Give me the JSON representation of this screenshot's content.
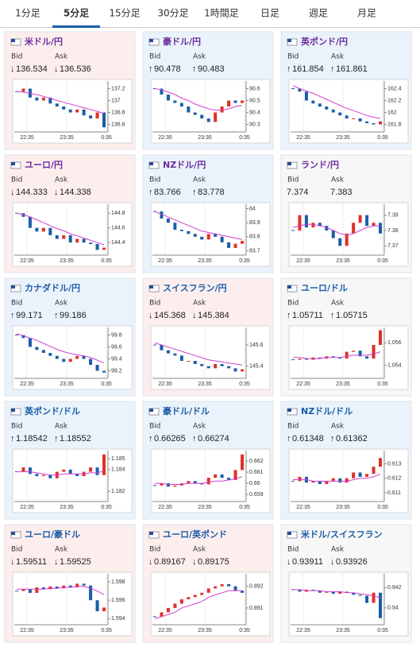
{
  "tabs": [
    "1分足",
    "5分足",
    "15分足",
    "30分足",
    "1時間足",
    "日足",
    "週足",
    "月足"
  ],
  "active_tab": 1,
  "tiles": [
    {
      "name": "米ドル/円",
      "name_color": "#6a2c9c",
      "background": "#fdeeee",
      "bid_label": "Bid",
      "ask_label": "Ask",
      "bid_arrow": "↓",
      "bid": "136.534",
      "ask_arrow": "↓",
      "ask": "136.536",
      "chart": {
        "type": "candlestick",
        "x": [
          "22:35",
          "23:35",
          "0:35"
        ],
        "ylim": [
          136.5,
          137.3
        ],
        "yticks": [
          136.6,
          136.8,
          137,
          137.2
        ],
        "closes": [
          137.15,
          137.2,
          137.05,
          137.0,
          137.05,
          136.95,
          136.9,
          136.85,
          136.8,
          136.85,
          136.75,
          136.7,
          136.8,
          136.55
        ],
        "ma": [
          137.15,
          137.14,
          137.12,
          137.1,
          137.07,
          137.04,
          137.0,
          136.97,
          136.94,
          136.91,
          136.88,
          136.85,
          136.82,
          136.78
        ]
      }
    },
    {
      "name": "豪ドル/円",
      "name_color": "#6a2c9c",
      "background": "#eaf3fb",
      "bid_label": "Bid",
      "ask_label": "Ask",
      "bid_arrow": "↑",
      "bid": "90.478",
      "ask_arrow": "↑",
      "ask": "90.483",
      "chart": {
        "type": "candlestick",
        "x": [
          "22:35",
          "23:35",
          "0:35"
        ],
        "ylim": [
          90.25,
          90.65
        ],
        "yticks": [
          90.3,
          90.4,
          90.5,
          90.6
        ],
        "closes": [
          90.6,
          90.55,
          90.5,
          90.48,
          90.45,
          90.4,
          90.38,
          90.35,
          90.32,
          90.4,
          90.45,
          90.5,
          90.48,
          90.5
        ],
        "ma": [
          90.6,
          90.59,
          90.57,
          90.55,
          90.52,
          90.5,
          90.47,
          90.45,
          90.43,
          90.42,
          90.42,
          90.43,
          90.45,
          90.46
        ]
      }
    },
    {
      "name": "英ポンド/円",
      "name_color": "#6a2c9c",
      "background": "#eaf3fb",
      "bid_label": "Bid",
      "ask_label": "Ask",
      "bid_arrow": "↑",
      "bid": "161.854",
      "ask_arrow": "↑",
      "ask": "161.861",
      "chart": {
        "type": "candlestick",
        "x": [
          "22:35",
          "23:35",
          "0:35"
        ],
        "ylim": [
          161.7,
          162.5
        ],
        "yticks": [
          161.8,
          162,
          162.2,
          162.4
        ],
        "closes": [
          162.4,
          162.35,
          162.2,
          162.15,
          162.1,
          162.05,
          162.0,
          161.95,
          161.9,
          161.9,
          161.85,
          161.82,
          161.8,
          161.85
        ],
        "ma": [
          162.45,
          162.4,
          162.36,
          162.32,
          162.27,
          162.22,
          162.17,
          162.12,
          162.07,
          162.03,
          161.99,
          161.95,
          161.92,
          161.9
        ]
      }
    },
    {
      "name": "ユーロ/円",
      "name_color": "#6a2c9c",
      "background": "#fdeeee",
      "bid_label": "Bid",
      "ask_label": "Ask",
      "bid_arrow": "↓",
      "bid": "144.333",
      "ask_arrow": "↓",
      "ask": "144.338",
      "chart": {
        "type": "candlestick",
        "x": [
          "22:35",
          "23:35",
          "0:35"
        ],
        "ylim": [
          144.25,
          144.9
        ],
        "yticks": [
          144.4,
          144.6,
          144.8
        ],
        "closes": [
          144.8,
          144.75,
          144.6,
          144.55,
          144.6,
          144.5,
          144.45,
          144.5,
          144.4,
          144.45,
          144.4,
          144.38,
          144.3,
          144.33
        ],
        "ma": [
          144.8,
          144.78,
          144.75,
          144.71,
          144.67,
          144.63,
          144.59,
          144.56,
          144.52,
          144.49,
          144.46,
          144.43,
          144.4,
          144.37
        ]
      }
    },
    {
      "name": "NZドル/円",
      "name_color": "#6a2c9c",
      "background": "#eaf3fb",
      "bid_label": "Bid",
      "ask_label": "Ask",
      "bid_arrow": "↑",
      "bid": "83.766",
      "ask_arrow": "↑",
      "ask": "83.778",
      "chart": {
        "type": "candlestick",
        "x": [
          "22:35",
          "23:35",
          "0:35"
        ],
        "ylim": [
          83.68,
          84.02
        ],
        "yticks": [
          83.7,
          83.8,
          83.9,
          84
        ],
        "closes": [
          83.98,
          83.93,
          83.9,
          83.85,
          83.84,
          83.82,
          83.8,
          83.78,
          83.82,
          83.8,
          83.76,
          83.72,
          83.75,
          83.77
        ],
        "ma": [
          83.98,
          83.96,
          83.94,
          83.92,
          83.9,
          83.88,
          83.86,
          83.84,
          83.83,
          83.82,
          83.81,
          83.8,
          83.79,
          83.78
        ]
      }
    },
    {
      "name": "ランド/円",
      "name_color": "#6a2c9c",
      "background": "#f7f7f7",
      "bid_label": "Bid",
      "ask_label": "Ask",
      "bid": "7.374",
      "ask": "7.383",
      "chart": {
        "type": "candlestick",
        "x": [
          "22:35",
          "23:35",
          "0:35"
        ],
        "ylim": [
          7.365,
          7.396
        ],
        "yticks": [
          7.37,
          7.38,
          7.39
        ],
        "closes": [
          7.38,
          7.39,
          7.382,
          7.385,
          7.383,
          7.38,
          7.375,
          7.37,
          7.378,
          7.385,
          7.39,
          7.383,
          7.385,
          7.378
        ],
        "ma": [
          7.382,
          7.383,
          7.384,
          7.384,
          7.383,
          7.382,
          7.38,
          7.378,
          7.377,
          7.378,
          7.38,
          7.382,
          7.383,
          7.383
        ]
      }
    },
    {
      "name": "カナダドル/円",
      "name_color": "#1a5ea8",
      "background": "#eaf3fb",
      "bid_label": "Bid",
      "ask_label": "Ask",
      "bid_arrow": "↑",
      "bid": "99.171",
      "ask_arrow": "↑",
      "ask": "99.186",
      "chart": {
        "type": "candlestick",
        "x": [
          "22:35",
          "23:35",
          "0:35"
        ],
        "ylim": [
          99.1,
          99.9
        ],
        "yticks": [
          99.2,
          99.4,
          99.6,
          99.8
        ],
        "closes": [
          99.8,
          99.75,
          99.6,
          99.55,
          99.5,
          99.45,
          99.4,
          99.35,
          99.4,
          99.45,
          99.4,
          99.3,
          99.2,
          99.17
        ],
        "ma": [
          99.82,
          99.79,
          99.75,
          99.71,
          99.66,
          99.61,
          99.56,
          99.52,
          99.49,
          99.47,
          99.45,
          99.42,
          99.38,
          99.33
        ]
      }
    },
    {
      "name": "スイスフラン/円",
      "name_color": "#1a5ea8",
      "background": "#fdeeee",
      "bid_label": "Bid",
      "ask_label": "Ask",
      "bid_arrow": "↓",
      "bid": "145.368",
      "ask_arrow": "↓",
      "ask": "145.384",
      "chart": {
        "type": "candlestick",
        "x": [
          "22:35",
          "23:35",
          "0:35"
        ],
        "ylim": [
          145.3,
          145.75
        ],
        "yticks": [
          145.4,
          145.6
        ],
        "closes": [
          145.6,
          145.55,
          145.52,
          145.5,
          145.45,
          145.45,
          145.42,
          145.4,
          145.38,
          145.42,
          145.4,
          145.38,
          145.35,
          145.37
        ],
        "ma": [
          145.62,
          145.6,
          145.58,
          145.56,
          145.54,
          145.52,
          145.5,
          145.48,
          145.46,
          145.45,
          145.44,
          145.43,
          145.42,
          145.41
        ]
      }
    },
    {
      "name": "ユーロ/ドル",
      "name_color": "#1a5ea8",
      "background": "#f7f7f7",
      "bid_label": "Bid",
      "ask_label": "Ask",
      "bid_arrow": "↑",
      "bid": "1.05711",
      "ask_arrow": "↑",
      "ask": "1.05715",
      "chart": {
        "type": "candlestick",
        "x": [
          "22:35",
          "23:35",
          "0:35"
        ],
        "ylim": [
          1.053,
          1.0572
        ],
        "yticks": [
          1.054,
          1.056
        ],
        "closes": [
          1.0545,
          1.0546,
          1.0545,
          1.0547,
          1.0546,
          1.0548,
          1.0547,
          1.0546,
          1.0552,
          1.0553,
          1.0548,
          1.0546,
          1.0558,
          1.0571
        ],
        "ma": [
          1.0547,
          1.0547,
          1.0546,
          1.0546,
          1.0546,
          1.0547,
          1.0547,
          1.0547,
          1.0548,
          1.0549,
          1.0549,
          1.0549,
          1.055,
          1.0552
        ]
      }
    },
    {
      "name": "英ポンド/ドル",
      "name_color": "#1a5ea8",
      "background": "#eaf3fb",
      "bid_label": "Bid",
      "ask_label": "Ask",
      "bid_arrow": "↑",
      "bid": "1.18542",
      "ask_arrow": "↑",
      "ask": "1.18552",
      "chart": {
        "type": "candlestick",
        "x": [
          "22:35",
          "23:35",
          "0:35"
        ],
        "ylim": [
          1.1812,
          1.1856
        ],
        "yticks": [
          1.182,
          1.184,
          1.185
        ],
        "closes": [
          1.1838,
          1.1842,
          1.1836,
          1.1834,
          1.1835,
          1.1832,
          1.1838,
          1.184,
          1.1836,
          1.1834,
          1.1838,
          1.1842,
          1.1835,
          1.1854
        ],
        "ma": [
          1.1838,
          1.1838,
          1.1838,
          1.1837,
          1.1836,
          1.1835,
          1.1835,
          1.1836,
          1.1836,
          1.1836,
          1.1836,
          1.1837,
          1.1837,
          1.1839
        ]
      }
    },
    {
      "name": "豪ドル/ドル",
      "name_color": "#1a5ea8",
      "background": "#eaf3fb",
      "bid_label": "Bid",
      "ask_label": "Ask",
      "bid_arrow": "↑",
      "bid": "0.66265",
      "ask_arrow": "↑",
      "ask": "0.66274",
      "chart": {
        "type": "candlestick",
        "x": [
          "22:35",
          "23:35",
          "0:35"
        ],
        "ylim": [
          0.6585,
          0.6628
        ],
        "yticks": [
          0.659,
          0.66,
          0.661,
          0.662
        ],
        "closes": [
          0.6598,
          0.66,
          0.6597,
          0.6598,
          0.66,
          0.6602,
          0.66,
          0.6599,
          0.6605,
          0.6608,
          0.6605,
          0.6603,
          0.6612,
          0.6626
        ],
        "ma": [
          0.66,
          0.66,
          0.6599,
          0.6599,
          0.6599,
          0.66,
          0.66,
          0.66,
          0.6601,
          0.6602,
          0.6602,
          0.6603,
          0.6604,
          0.6606
        ]
      }
    },
    {
      "name": "NZドル/ドル",
      "name_color": "#1a5ea8",
      "background": "#eaf3fb",
      "bid_label": "Bid",
      "ask_label": "Ask",
      "bid_arrow": "↑",
      "bid": "0.61348",
      "ask_arrow": "↑",
      "ask": "0.61362",
      "chart": {
        "type": "candlestick",
        "x": [
          "22:35",
          "23:35",
          "0:35"
        ],
        "ylim": [
          0.6105,
          0.6138
        ],
        "yticks": [
          0.611,
          0.612,
          0.613
        ],
        "closes": [
          0.6118,
          0.6121,
          0.6117,
          0.6118,
          0.6116,
          0.6118,
          0.612,
          0.6117,
          0.612,
          0.6124,
          0.6121,
          0.6123,
          0.6128,
          0.6134
        ],
        "ma": [
          0.6119,
          0.6119,
          0.6119,
          0.6118,
          0.6118,
          0.6118,
          0.6118,
          0.6118,
          0.6118,
          0.6119,
          0.612,
          0.612,
          0.6121,
          0.6123
        ]
      }
    },
    {
      "name": "ユーロ/豪ドル",
      "name_color": "#1a5ea8",
      "background": "#fdeeee",
      "bid_label": "Bid",
      "ask_label": "Ask",
      "bid_arrow": "↓",
      "bid": "1.59511",
      "ask_arrow": "↓",
      "ask": "1.59525",
      "chart": {
        "type": "candlestick",
        "x": [
          "22:35",
          "23:35",
          "0:35"
        ],
        "ylim": [
          1.5935,
          1.5987
        ],
        "yticks": [
          1.594,
          1.596,
          1.598
        ],
        "closes": [
          1.597,
          1.5972,
          1.5968,
          1.5974,
          1.5972,
          1.5975,
          1.5973,
          1.5976,
          1.5974,
          1.5978,
          1.5976,
          1.596,
          1.5948,
          1.5952
        ],
        "ma": [
          1.5972,
          1.5972,
          1.5972,
          1.5972,
          1.5972,
          1.5973,
          1.5973,
          1.5974,
          1.5974,
          1.5975,
          1.5975,
          1.5973,
          1.597,
          1.5966
        ]
      }
    },
    {
      "name": "ユーロ/英ポンド",
      "name_color": "#1a5ea8",
      "background": "#fdeeee",
      "bid_label": "Bid",
      "ask_label": "Ask",
      "bid_arrow": "↓",
      "bid": "0.89167",
      "ask_arrow": "↓",
      "ask": "0.89175",
      "chart": {
        "type": "candlestick",
        "x": [
          "22:35",
          "23:35",
          "0:35"
        ],
        "ylim": [
          0.8903,
          0.8925
        ],
        "yticks": [
          0.891,
          0.892
        ],
        "closes": [
          0.8906,
          0.8908,
          0.891,
          0.8912,
          0.8914,
          0.8915,
          0.8916,
          0.8917,
          0.8919,
          0.892,
          0.8921,
          0.892,
          0.8918,
          0.8917
        ],
        "ma": [
          0.8905,
          0.8906,
          0.8907,
          0.8908,
          0.891,
          0.8911,
          0.8912,
          0.8913,
          0.8915,
          0.8916,
          0.8917,
          0.8918,
          0.8918,
          0.8918
        ]
      }
    },
    {
      "name": "米ドル/スイスフラン",
      "name_color": "#1a5ea8",
      "background": "#f7f7f7",
      "bid_label": "Bid",
      "ask_label": "Ask",
      "bid_arrow": "↓",
      "bid": "0.93911",
      "ask_arrow": "↓",
      "ask": "0.93926",
      "chart": {
        "type": "candlestick",
        "x": [
          "22:35",
          "23:35",
          "0:35"
        ],
        "ylim": [
          0.9385,
          0.9432
        ],
        "yticks": [
          0.94,
          0.942
        ],
        "closes": [
          0.9418,
          0.9416,
          0.9418,
          0.9417,
          0.9415,
          0.9416,
          0.9414,
          0.9416,
          0.9415,
          0.9413,
          0.9412,
          0.9405,
          0.9415,
          0.939
        ],
        "ma": [
          0.9418,
          0.9418,
          0.9417,
          0.9417,
          0.9417,
          0.9416,
          0.9416,
          0.9416,
          0.9415,
          0.9415,
          0.9414,
          0.9413,
          0.9412,
          0.941
        ]
      }
    }
  ]
}
